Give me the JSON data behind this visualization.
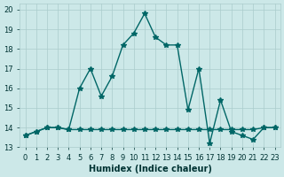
{
  "title": "",
  "xlabel": "Humidex (Indice chaleur)",
  "ylabel": "",
  "bg_color": "#cce8e8",
  "grid_color": "#aacccc",
  "line_color": "#006666",
  "x_values": [
    0,
    1,
    2,
    3,
    4,
    5,
    6,
    7,
    8,
    9,
    10,
    11,
    12,
    13,
    14,
    15,
    16,
    17,
    18,
    19,
    20,
    21,
    22,
    23
  ],
  "y_humidex": [
    13.6,
    13.8,
    14.0,
    14.0,
    13.9,
    16.0,
    17.0,
    15.6,
    16.6,
    18.2,
    18.8,
    19.8,
    18.6,
    18.2,
    18.2,
    14.9,
    17.0,
    13.2,
    15.4,
    13.8,
    13.6,
    13.4,
    14.0,
    14.0
  ],
  "y_base": [
    13.6,
    13.8,
    14.0,
    14.0,
    13.9,
    13.9,
    13.9,
    13.9,
    13.9,
    13.9,
    13.9,
    13.9,
    13.9,
    13.9,
    13.9,
    13.9,
    13.9,
    13.9,
    13.9,
    13.9,
    13.9,
    13.9,
    14.0,
    14.0
  ],
  "ylim": [
    13.0,
    20.3
  ],
  "xlim": [
    -0.5,
    23.5
  ],
  "yticks": [
    13,
    14,
    15,
    16,
    17,
    18,
    19,
    20
  ],
  "xticks": [
    0,
    1,
    2,
    3,
    4,
    5,
    6,
    7,
    8,
    9,
    10,
    11,
    12,
    13,
    14,
    15,
    16,
    17,
    18,
    19,
    20,
    21,
    22,
    23
  ],
  "xtick_labels": [
    "0",
    "1",
    "2",
    "3",
    "4",
    "5",
    "6",
    "7",
    "8",
    "9",
    "10",
    "11",
    "12",
    "13",
    "14",
    "15",
    "16",
    "17",
    "18",
    "19",
    "20",
    "21",
    "22",
    "23"
  ],
  "marker": "*",
  "markersize": 4,
  "linewidth": 1.0,
  "label_fontsize": 7,
  "tick_fontsize": 6
}
